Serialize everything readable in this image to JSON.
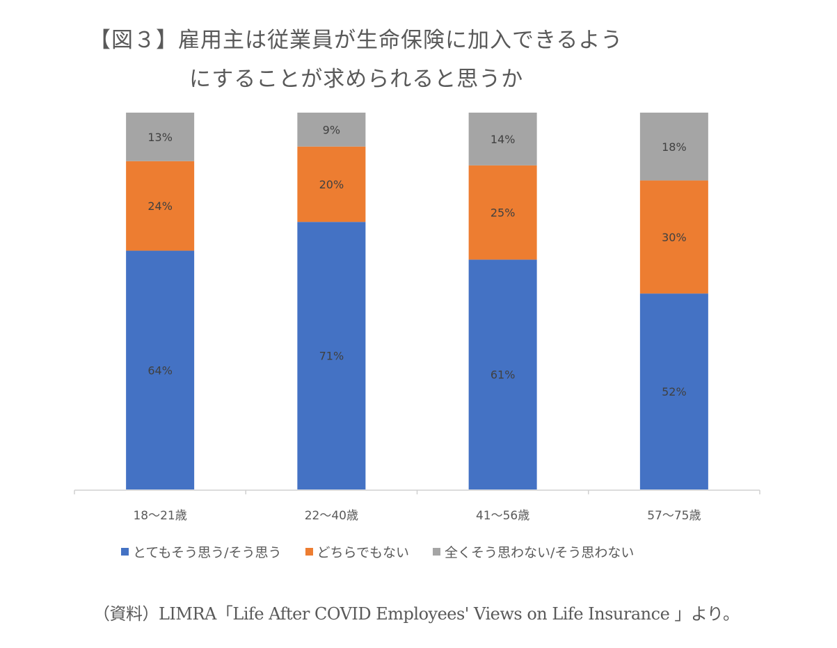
{
  "title_line1": "【図３】雇用主は従業員が生命保険に加入できるよう",
  "title_line2": "にすることが求められると思うか",
  "source": "（資料）LIMRA「Life After COVID Employees' Views on Life Insurance 」より。",
  "chart_data": {
    "type": "bar",
    "stacked": true,
    "title": "【図３】雇用主は従業員が生命保険に加入できるようにすることが求められると思うか",
    "xlabel": "",
    "ylabel": "",
    "ylim": [
      0,
      100
    ],
    "grid": false,
    "legend_position": "bottom",
    "categories": [
      "18〜21歳",
      "22〜40歳",
      "41〜56歳",
      "57〜75歳"
    ],
    "series": [
      {
        "name": "とてもそう思う/そう思う",
        "color": "#4472C4",
        "values": [
          64,
          71,
          61,
          52
        ],
        "labels": [
          "64%",
          "71%",
          "61%",
          "52%"
        ]
      },
      {
        "name": "どちらでもない",
        "color": "#ED7D31",
        "values": [
          24,
          20,
          25,
          30
        ],
        "labels": [
          "24%",
          "20%",
          "25%",
          "30%"
        ]
      },
      {
        "name": "全くそう思わない/そう思わない",
        "color": "#A5A5A5",
        "values": [
          13,
          9,
          14,
          18
        ],
        "labels": [
          "13%",
          "9%",
          "14%",
          "18%"
        ]
      }
    ]
  }
}
